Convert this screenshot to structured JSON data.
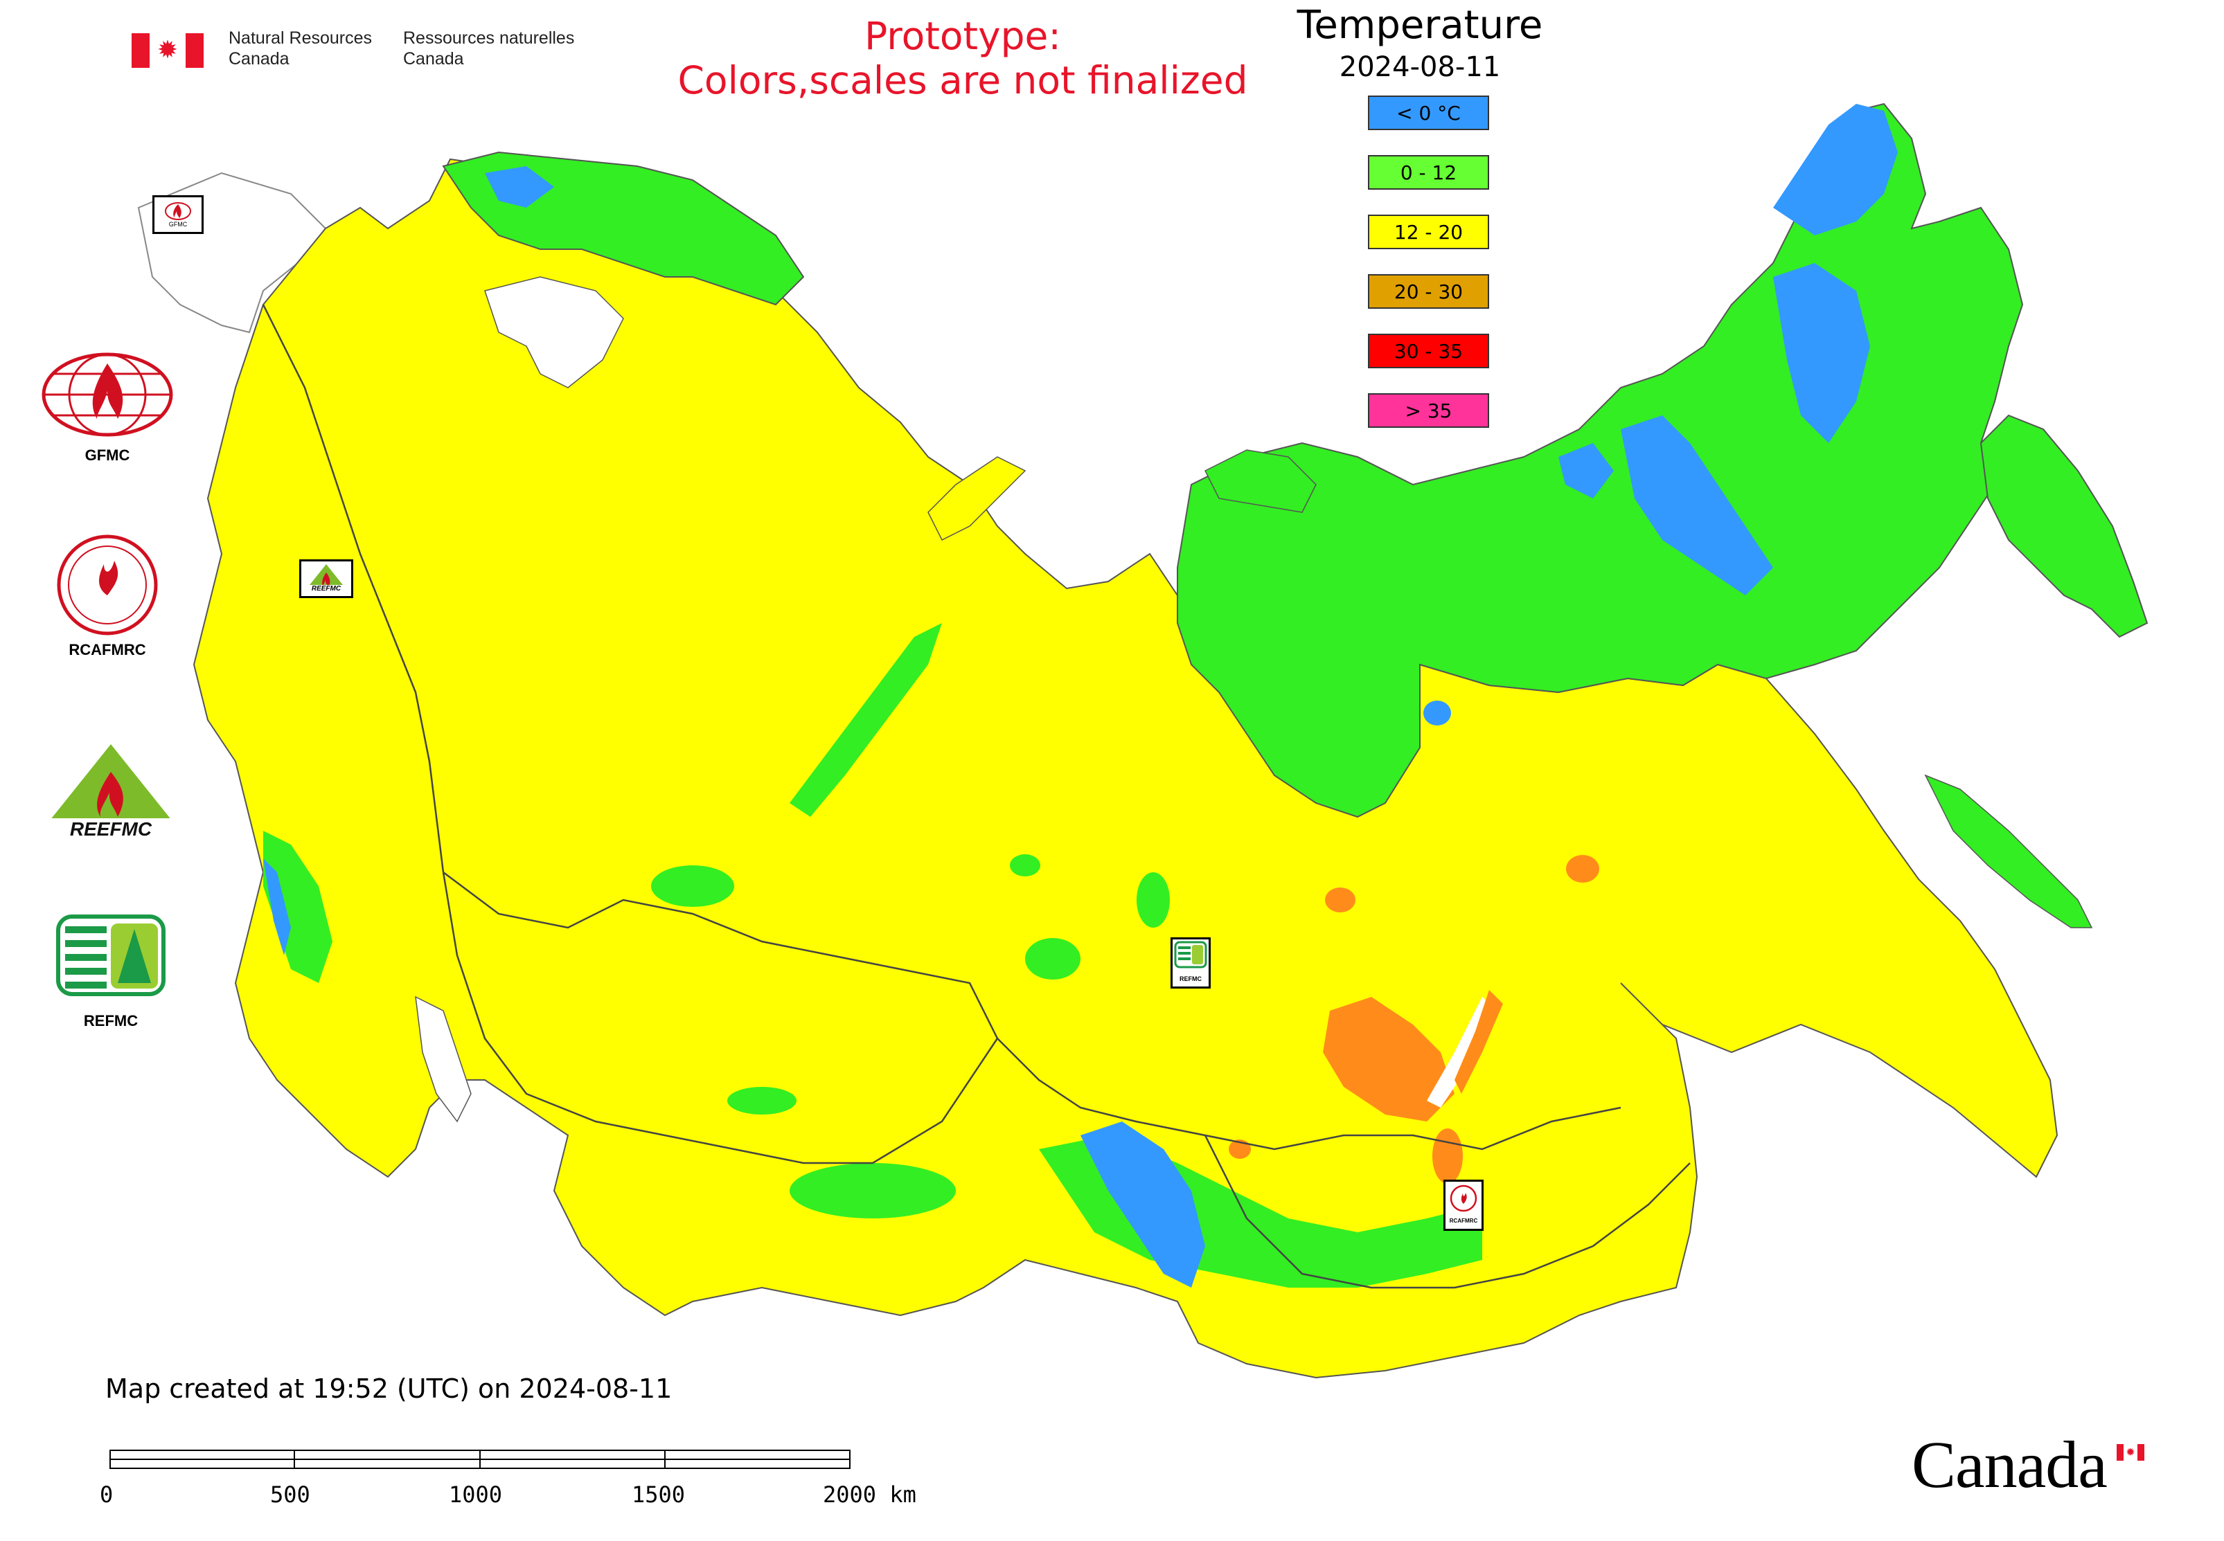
{
  "header": {
    "agency_en_line1": "Natural Resources",
    "agency_en_line2": "Canada",
    "agency_fr_line1": "Ressources naturelles",
    "agency_fr_line2": "Canada",
    "prototype_line1": "Prototype:",
    "prototype_line2": "Colors,scales are not finalized"
  },
  "legend": {
    "title": "Temperature",
    "date": "2024-08-11",
    "classes": [
      {
        "label": "< 0 °C",
        "color": "#3399ff"
      },
      {
        "label": "0 - 12",
        "color": "#66ff33"
      },
      {
        "label": "12 - 20",
        "color": "#ffff00"
      },
      {
        "label": "20 - 30",
        "color": "#e0a000"
      },
      {
        "label": "30 - 35",
        "color": "#ff0000"
      },
      {
        "label": "> 35",
        "color": "#ff3399"
      }
    ]
  },
  "logos": {
    "gfmc": "GFMC",
    "rcafmrc": "RCAFMRC",
    "reefmc_text": "REEFMC",
    "refmc": "REFMC"
  },
  "map_markers": {
    "gfmc": "GFMC",
    "reefmc": "REEFMC",
    "refmc": "REFMC",
    "rcafmrc": "RCAFMRC"
  },
  "footer": {
    "created_note": "Map created at 19:52 (UTC) on 2024-08-11",
    "scale_labels": [
      "0",
      "500",
      "1000",
      "1500",
      "2000 km"
    ],
    "wordmark": "Canada"
  },
  "colors": {
    "cold": "#3399ff",
    "cool": "#33ee22",
    "mild": "#ffff00",
    "warm": "#ff8c1a",
    "ocean": "#ffffff"
  }
}
